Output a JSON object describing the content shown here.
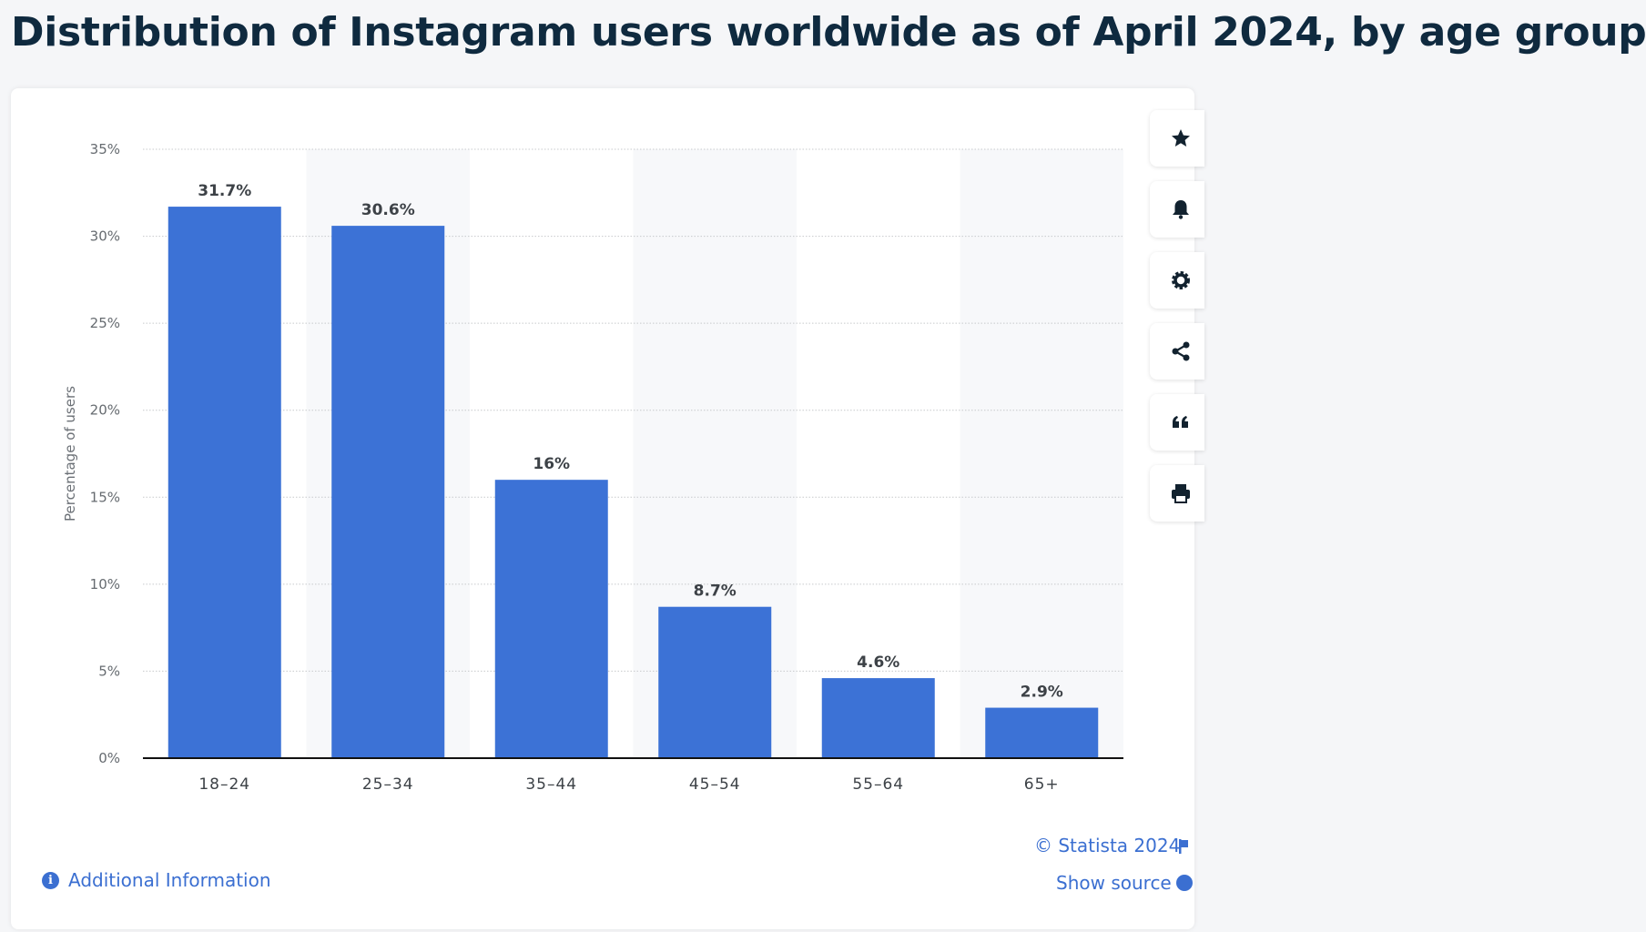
{
  "title": "Distribution of Instagram users worldwide as of April 2024, by age group",
  "colors": {
    "bar": "#3c72d6",
    "title": "#0f2a3f",
    "link": "#3b6fd1",
    "band": "#f7f8fa",
    "grid": "#c7c9cc",
    "axis": "#111111"
  },
  "sidebar": {
    "buttons": [
      {
        "name": "favorite-button",
        "icon": "star-icon"
      },
      {
        "name": "notification-button",
        "icon": "bell-icon"
      },
      {
        "name": "settings-button",
        "icon": "gear-icon"
      },
      {
        "name": "share-button",
        "icon": "share-icon"
      },
      {
        "name": "cite-button",
        "icon": "quote-icon"
      },
      {
        "name": "print-button",
        "icon": "printer-icon"
      }
    ]
  },
  "footer": {
    "copyright": "© Statista 2024",
    "show_source": "Show source",
    "additional_info": "Additional Information"
  },
  "chart_data": {
    "type": "bar",
    "categories": [
      "18-24",
      "25-34",
      "35-44",
      "45-54",
      "55-64",
      "65+"
    ],
    "values": [
      31.7,
      30.6,
      16,
      8.7,
      4.6,
      2.9
    ],
    "data_labels": [
      "31.7%",
      "30.6%",
      "16%",
      "8.7%",
      "4.6%",
      "2.9%"
    ],
    "xlabel": "",
    "ylabel": "Percentage of users",
    "ylim": [
      0,
      35
    ],
    "yticks": [
      0,
      5,
      10,
      15,
      20,
      25,
      30,
      35
    ],
    "ytick_labels": [
      "0%",
      "5%",
      "10%",
      "15%",
      "20%",
      "25%",
      "30%",
      "35%"
    ],
    "grid": true,
    "legend": "none"
  }
}
